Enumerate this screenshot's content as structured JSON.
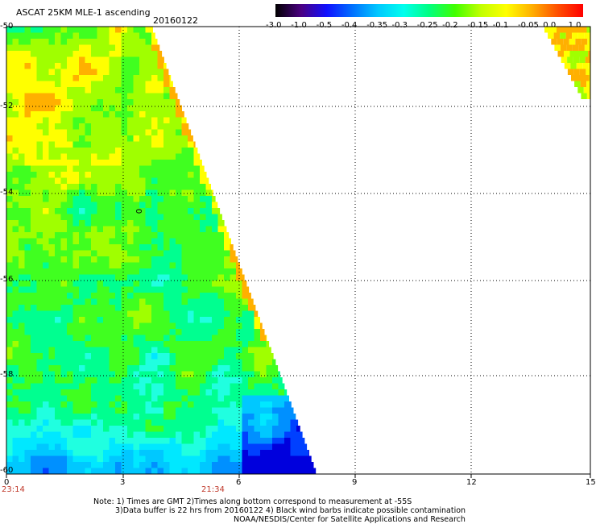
{
  "title": "ASCAT 25KM MLE-1 ascending",
  "date": "20160122",
  "colorbar": {
    "labels": [
      "-3.0",
      "-1.0",
      "-0.5",
      "-0.4",
      "-0.35",
      "-0.3",
      "-0.25",
      "-0.2",
      "-0.15",
      "-0.1",
      "-0.05",
      "0.0",
      "1.0"
    ],
    "colors": [
      "#000000",
      "#4b0082",
      "#1010ff",
      "#0070ff",
      "#00c8ff",
      "#00ffee",
      "#00ff80",
      "#40ff00",
      "#c0ff00",
      "#ffff00",
      "#ffb000",
      "#ff5000",
      "#ff0000"
    ]
  },
  "axes": {
    "y_ticks": [
      "-50",
      "-52",
      "-54",
      "-56",
      "-58",
      "-60"
    ],
    "x_ticks": [
      "0",
      "3",
      "6",
      "9",
      "12",
      "15"
    ],
    "time_labels": [
      "23:14",
      "21:34"
    ]
  },
  "map_label": "0",
  "notes": {
    "line1": "Note: 1) Times are GMT 2)Times along bottom correspond to measurement at -55S",
    "line2": "3)Data buffer is 22 hrs from 20160122 4) Black wind barbs indicate possible contamination",
    "line3": "NOAA/NESDIS/Center for Satellite Applications and Research"
  }
}
